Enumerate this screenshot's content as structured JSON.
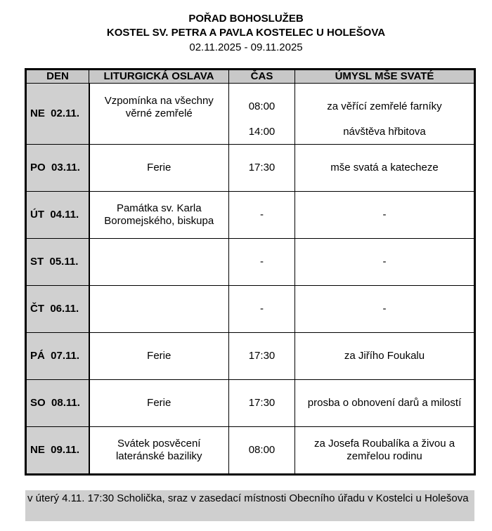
{
  "header": {
    "title": "POŘAD BOHOSLUŽEB",
    "subtitle": "KOSTEL SV. PETRA A PAVLA KOSTELEC U HOLEŠOVA",
    "dates": "02.11.2025 - 09.11.2025"
  },
  "table": {
    "columns": [
      "DEN",
      "LITURGICKÁ OSLAVA",
      "ČAS",
      "ÚMYSL MŠE SVATÉ"
    ],
    "rows": [
      {
        "day": "NE  02.11.",
        "celebration": "Vzpomínka na všechny věrné zemřelé",
        "times": [
          "08:00",
          "14:00"
        ],
        "intentions": [
          "za věřící zemřelé farníky",
          "návštěva hřbitova"
        ]
      },
      {
        "day": "PO  03.11.",
        "celebration": "Ferie",
        "time": "17:30",
        "intention": "mše svatá a katecheze"
      },
      {
        "day": "ÚT  04.11.",
        "celebration": "Památka sv. Karla Boromejského, biskupa",
        "time": "-",
        "intention": "-"
      },
      {
        "day": "ST  05.11.",
        "celebration": "",
        "time": "-",
        "intention": "-"
      },
      {
        "day": "ČT  06.11.",
        "celebration": "",
        "time": "-",
        "intention": "-"
      },
      {
        "day": "PÁ  07.11.",
        "celebration": "Ferie",
        "time": "17:30",
        "intention": "za Jiřího Foukalu"
      },
      {
        "day": "SO  08.11.",
        "celebration": "Ferie",
        "time": "17:30",
        "intention": "prosba o obnovení darů a milostí"
      },
      {
        "day": "NE  09.11.",
        "celebration": "Svátek posvěcení lateránské baziliky",
        "time": "08:00",
        "intention": "za Josefa Roubalíka a živou a zemřelou rodinu"
      }
    ]
  },
  "note": "v úterý 4.11. 17:30 Scholička, sraz v zasedací místnosti Obecního úřadu v Kostelci u Holešova"
}
